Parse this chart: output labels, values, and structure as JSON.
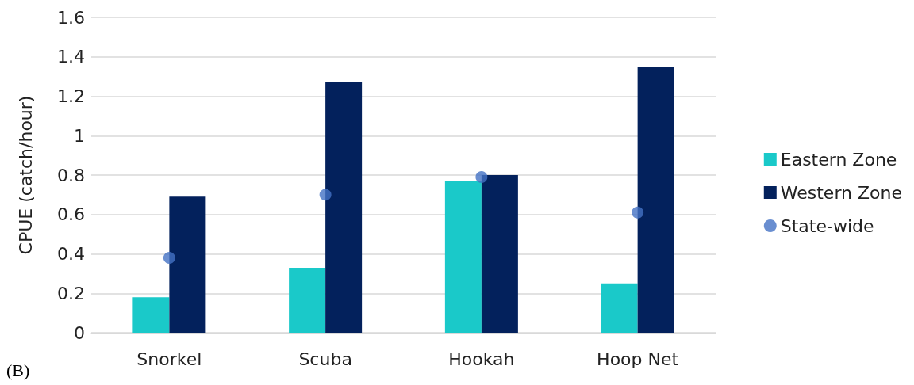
{
  "chart_data": {
    "type": "bar",
    "ylabel": "CPUE (catch/hour)",
    "categories": [
      "Snorkel",
      "Scuba",
      "Hookah",
      "Hoop Net"
    ],
    "series": [
      {
        "name": "Eastern Zone",
        "color": "#1ac9c9",
        "values": [
          0.18,
          0.33,
          0.77,
          0.25
        ]
      },
      {
        "name": "Western Zone",
        "color": "#03215c",
        "values": [
          0.69,
          1.27,
          0.8,
          1.35
        ]
      },
      {
        "name": "State-wide",
        "type": "scatter",
        "color": "#4472c4",
        "marker": "circle",
        "x": [
          "Snorkel",
          "Scuba",
          "Hookah",
          "Hoop Net"
        ],
        "values": [
          0.38,
          0.7,
          0.79,
          0.61
        ]
      }
    ],
    "ylim": [
      0,
      1.6
    ],
    "yticks": [
      0,
      0.2,
      0.4,
      0.6,
      0.8,
      1,
      1.2,
      1.4,
      1.6
    ],
    "grid": "y",
    "legend": "right",
    "annotations": [
      "(B)"
    ]
  }
}
